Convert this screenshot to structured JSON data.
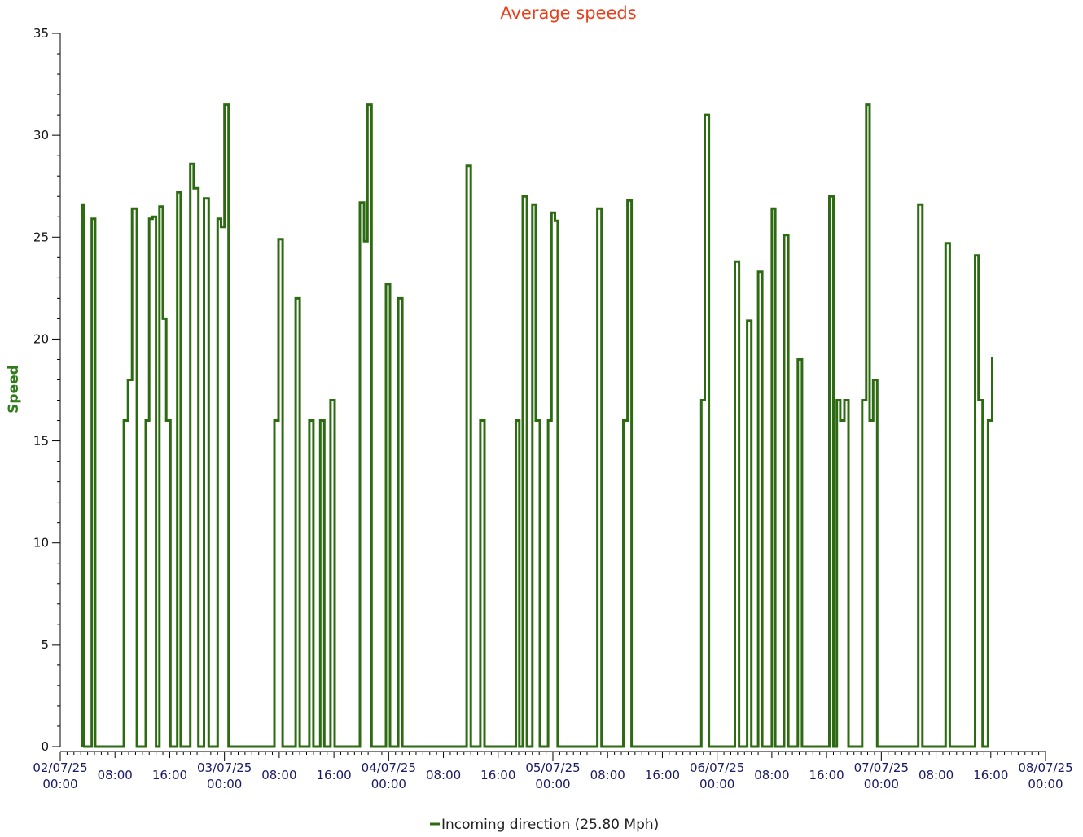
{
  "chart_data": {
    "type": "line",
    "title": "Average speeds",
    "ylabel": "Speed",
    "xlabel": "",
    "ylim": [
      0,
      35
    ],
    "yticks": [
      0,
      5,
      10,
      15,
      20,
      25,
      30,
      35
    ],
    "xlim_hours": [
      0,
      144
    ],
    "xtick_labels": [
      {
        "h": 0,
        "line1": "02/07/25",
        "line2": "00:00"
      },
      {
        "h": 8,
        "line1": "08:00",
        "line2": ""
      },
      {
        "h": 16,
        "line1": "16:00",
        "line2": ""
      },
      {
        "h": 24,
        "line1": "03/07/25",
        "line2": "00:00"
      },
      {
        "h": 32,
        "line1": "08:00",
        "line2": ""
      },
      {
        "h": 40,
        "line1": "16:00",
        "line2": ""
      },
      {
        "h": 48,
        "line1": "04/07/25",
        "line2": "00:00"
      },
      {
        "h": 56,
        "line1": "08:00",
        "line2": ""
      },
      {
        "h": 64,
        "line1": "16:00",
        "line2": ""
      },
      {
        "h": 72,
        "line1": "05/07/25",
        "line2": "00:00"
      },
      {
        "h": 80,
        "line1": "08:00",
        "line2": ""
      },
      {
        "h": 88,
        "line1": "16:00",
        "line2": ""
      },
      {
        "h": 96,
        "line1": "06/07/25",
        "line2": "00:00"
      },
      {
        "h": 104,
        "line1": "08:00",
        "line2": ""
      },
      {
        "h": 112,
        "line1": "16:00",
        "line2": ""
      },
      {
        "h": 120,
        "line1": "07/07/25",
        "line2": "00:00"
      },
      {
        "h": 128,
        "line1": "08:00",
        "line2": ""
      },
      {
        "h": 136,
        "line1": "16:00",
        "line2": ""
      },
      {
        "h": 144,
        "line1": "08/07/25",
        "line2": "00:00"
      }
    ],
    "series": [
      {
        "name": "Incoming direction (25.80 Mph)",
        "color": "#2d6b12",
        "points": [
          [
            3.2,
            26.6
          ],
          [
            3.5,
            0
          ],
          [
            4.6,
            25.9
          ],
          [
            5.1,
            0
          ],
          [
            9.3,
            16
          ],
          [
            9.9,
            18
          ],
          [
            10.5,
            26.4
          ],
          [
            11.2,
            0
          ],
          [
            12.5,
            16
          ],
          [
            13.0,
            25.9
          ],
          [
            13.5,
            26.0
          ],
          [
            14.0,
            0
          ],
          [
            14.5,
            26.5
          ],
          [
            15.0,
            21
          ],
          [
            15.5,
            16
          ],
          [
            16.1,
            0
          ],
          [
            17.1,
            27.2
          ],
          [
            17.6,
            0
          ],
          [
            19.0,
            28.6
          ],
          [
            19.5,
            27.4
          ],
          [
            20.2,
            0
          ],
          [
            21.0,
            26.9
          ],
          [
            21.7,
            0
          ],
          [
            23.0,
            25.9
          ],
          [
            23.5,
            25.5
          ],
          [
            24.0,
            31.5
          ],
          [
            24.6,
            0
          ],
          [
            31.3,
            16
          ],
          [
            31.9,
            24.9
          ],
          [
            32.5,
            0
          ],
          [
            34.4,
            22.0
          ],
          [
            35.0,
            0
          ],
          [
            36.4,
            16
          ],
          [
            37.0,
            0
          ],
          [
            38.0,
            16
          ],
          [
            38.6,
            0
          ],
          [
            39.5,
            17
          ],
          [
            40.1,
            0
          ],
          [
            43.8,
            26.7
          ],
          [
            44.4,
            24.8
          ],
          [
            44.9,
            31.5
          ],
          [
            45.5,
            0
          ],
          [
            47.6,
            22.7
          ],
          [
            48.2,
            0
          ],
          [
            49.4,
            22.0
          ],
          [
            50.0,
            0
          ],
          [
            59.4,
            28.5
          ],
          [
            60.0,
            0
          ],
          [
            61.4,
            16
          ],
          [
            62.0,
            0
          ],
          [
            66.6,
            16
          ],
          [
            67.1,
            0
          ],
          [
            67.6,
            27.0
          ],
          [
            68.2,
            0
          ],
          [
            69.0,
            26.6
          ],
          [
            69.5,
            16
          ],
          [
            70.1,
            0
          ],
          [
            71.3,
            16
          ],
          [
            71.8,
            26.2
          ],
          [
            72.3,
            25.8
          ],
          [
            72.7,
            0
          ],
          [
            78.5,
            26.4
          ],
          [
            79.1,
            0
          ],
          [
            82.3,
            16
          ],
          [
            82.9,
            26.8
          ],
          [
            83.5,
            0
          ],
          [
            93.7,
            17
          ],
          [
            94.2,
            31.0
          ],
          [
            94.8,
            0
          ],
          [
            98.6,
            23.8
          ],
          [
            99.2,
            0
          ],
          [
            100.4,
            20.9
          ],
          [
            101.0,
            0
          ],
          [
            102.0,
            23.3
          ],
          [
            102.6,
            0
          ],
          [
            104.0,
            26.4
          ],
          [
            104.5,
            0
          ],
          [
            105.8,
            25.1
          ],
          [
            106.4,
            0
          ],
          [
            107.8,
            19.0
          ],
          [
            108.4,
            0
          ],
          [
            112.4,
            27.0
          ],
          [
            113.0,
            0
          ],
          [
            113.5,
            17
          ],
          [
            114.0,
            16
          ],
          [
            114.6,
            17
          ],
          [
            115.2,
            0
          ],
          [
            117.2,
            17
          ],
          [
            117.8,
            31.5
          ],
          [
            118.3,
            16
          ],
          [
            118.8,
            18
          ],
          [
            119.4,
            0
          ],
          [
            125.4,
            26.6
          ],
          [
            126.0,
            0
          ],
          [
            129.4,
            24.7
          ],
          [
            130.0,
            0
          ],
          [
            133.7,
            24.1
          ],
          [
            134.2,
            17
          ],
          [
            134.8,
            0
          ],
          [
            135.6,
            16
          ],
          [
            136.2,
            19.1
          ]
        ]
      }
    ],
    "legend_position": "bottom-center",
    "grid": false
  },
  "colors": {
    "title": "#e8401c",
    "ylabel": "#2e7d18",
    "line": "#2d6b12",
    "xtick_text": "#1a1a66"
  }
}
